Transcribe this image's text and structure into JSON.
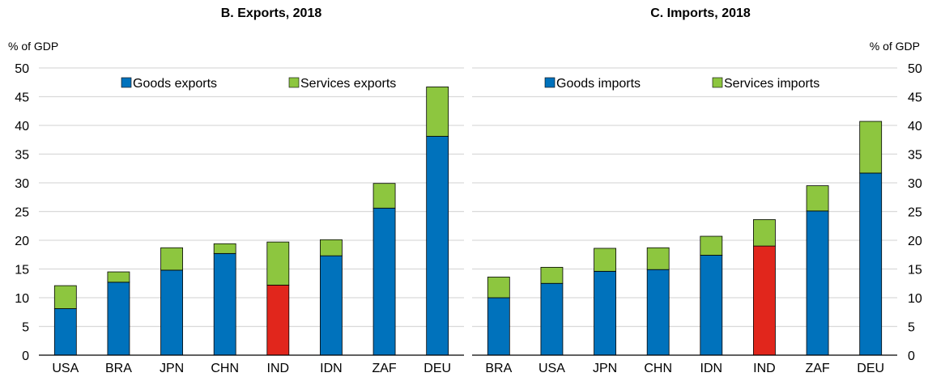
{
  "colors": {
    "goods": "#0072BC",
    "services": "#8DC63F",
    "highlight": "#E1261C",
    "grid": "#D9D9D9",
    "axis": "#000000"
  },
  "chart_data": [
    {
      "type": "bar",
      "stacked": true,
      "title": "B. Exports, 2018",
      "ylabel": "% of GDP",
      "ylim": [
        0,
        50
      ],
      "yticks": [
        0,
        5,
        10,
        15,
        20,
        25,
        30,
        35,
        40,
        45,
        50
      ],
      "y_axis_side": "left",
      "grid": true,
      "legend_position": "top-center",
      "highlight_category": "IND",
      "categories": [
        "USA",
        "BRA",
        "JPN",
        "CHN",
        "IND",
        "IDN",
        "ZAF",
        "DEU"
      ],
      "series": [
        {
          "name": "Goods exports",
          "values": [
            8.1,
            12.7,
            14.8,
            17.7,
            12.2,
            17.3,
            25.6,
            38.1
          ]
        },
        {
          "name": "Services exports",
          "values": [
            4.0,
            1.8,
            3.9,
            1.7,
            7.5,
            2.8,
            4.3,
            8.6
          ]
        }
      ]
    },
    {
      "type": "bar",
      "stacked": true,
      "title": "C. Imports, 2018",
      "ylabel": "% of GDP",
      "ylim": [
        0,
        50
      ],
      "yticks": [
        0,
        5,
        10,
        15,
        20,
        25,
        30,
        35,
        40,
        45,
        50
      ],
      "y_axis_side": "right",
      "grid": true,
      "legend_position": "top-center",
      "highlight_category": "IND",
      "categories": [
        "BRA",
        "USA",
        "JPN",
        "CHN",
        "IDN",
        "IND",
        "ZAF",
        "DEU"
      ],
      "series": [
        {
          "name": "Goods imports",
          "values": [
            10.0,
            12.5,
            14.6,
            14.9,
            17.4,
            19.0,
            25.1,
            31.7
          ]
        },
        {
          "name": "Services imports",
          "values": [
            3.6,
            2.8,
            4.0,
            3.8,
            3.3,
            4.6,
            4.4,
            9.0
          ]
        }
      ]
    }
  ]
}
